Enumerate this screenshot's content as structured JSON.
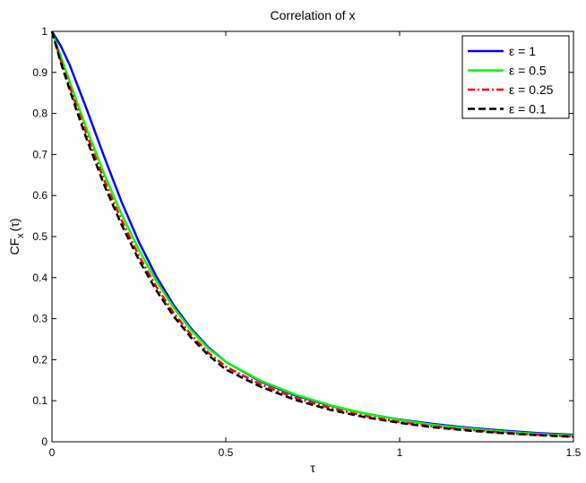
{
  "chart_data": {
    "type": "line",
    "title": "Correlation of x",
    "xlabel": "τ",
    "ylabel_main": "CF",
    "ylabel_sub": "x",
    "ylabel_tail": "(τ)",
    "xlim": [
      0,
      1.5
    ],
    "ylim": [
      0,
      1
    ],
    "xticks": [
      0,
      0.5,
      1,
      1.5
    ],
    "xtick_labels": [
      "0",
      "0.5",
      "1",
      "1.5"
    ],
    "yticks": [
      0,
      0.1,
      0.2,
      0.3,
      0.4,
      0.5,
      0.6,
      0.7,
      0.8,
      0.9,
      1
    ],
    "ytick_labels": [
      "0",
      "0.1",
      "0.2",
      "0.3",
      "0.4",
      "0.5",
      "0.6",
      "0.7",
      "0.8",
      "0.9",
      "1"
    ],
    "grid": false,
    "legend_position": "top-right",
    "x": [
      0,
      0.025,
      0.05,
      0.075,
      0.1,
      0.15,
      0.2,
      0.25,
      0.3,
      0.35,
      0.4,
      0.45,
      0.5,
      0.6,
      0.7,
      0.8,
      0.9,
      1.0,
      1.1,
      1.2,
      1.3,
      1.4,
      1.5
    ],
    "series": [
      {
        "name": "ε = 1",
        "color": "#0000ff",
        "dash": "solid",
        "values": [
          1.0,
          0.965,
          0.92,
          0.865,
          0.81,
          0.695,
          0.585,
          0.487,
          0.403,
          0.333,
          0.276,
          0.23,
          0.195,
          0.147,
          0.113,
          0.088,
          0.069,
          0.054,
          0.043,
          0.034,
          0.027,
          0.021,
          0.017
        ]
      },
      {
        "name": "ε = 0.5",
        "color": "#00ff00",
        "dash": "solid",
        "values": [
          1.0,
          0.94,
          0.88,
          0.82,
          0.762,
          0.653,
          0.555,
          0.468,
          0.392,
          0.327,
          0.272,
          0.227,
          0.195,
          0.149,
          0.115,
          0.089,
          0.069,
          0.053,
          0.041,
          0.032,
          0.025,
          0.019,
          0.015
        ]
      },
      {
        "name": "ε = 0.25",
        "color": "#ff0000",
        "dash": "dashdot",
        "values": [
          1.0,
          0.93,
          0.868,
          0.807,
          0.748,
          0.638,
          0.54,
          0.453,
          0.378,
          0.314,
          0.261,
          0.217,
          0.183,
          0.14,
          0.107,
          0.082,
          0.063,
          0.048,
          0.037,
          0.029,
          0.022,
          0.017,
          0.013
        ]
      },
      {
        "name": "ε = 0.1",
        "color": "#000000",
        "dash": "dashed",
        "values": [
          1.0,
          0.925,
          0.86,
          0.797,
          0.737,
          0.626,
          0.529,
          0.443,
          0.369,
          0.306,
          0.254,
          0.211,
          0.176,
          0.134,
          0.102,
          0.078,
          0.06,
          0.046,
          0.035,
          0.027,
          0.021,
          0.016,
          0.012
        ]
      }
    ]
  }
}
